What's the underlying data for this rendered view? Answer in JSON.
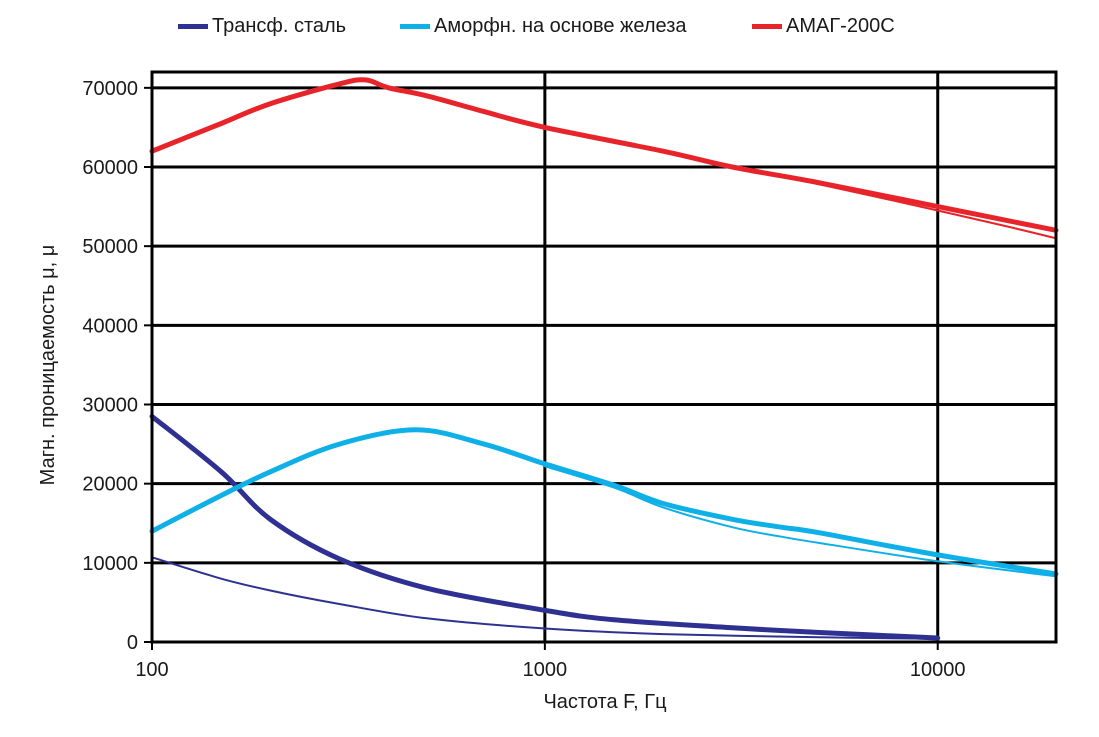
{
  "chart_data": {
    "type": "line",
    "xlabel": "Частота F, Гц",
    "ylabel": "Магн. проницаемость μ, μ",
    "x_scale": "log",
    "xlim": [
      100,
      20000
    ],
    "ylim": [
      0,
      72000
    ],
    "x_ticks": [
      100,
      1000,
      10000
    ],
    "x_tick_labels": [
      "100",
      "1000",
      "10000"
    ],
    "y_ticks": [
      0,
      10000,
      20000,
      30000,
      40000,
      50000,
      60000,
      70000
    ],
    "y_tick_labels": [
      "0",
      "10000",
      "20000",
      "30000",
      "40000",
      "50000",
      "60000",
      "70000"
    ],
    "grid": true,
    "legend_position": "top",
    "series": [
      {
        "name": "Трансф. сталь",
        "color": "#2e3192",
        "curves": [
          {
            "width": "thick",
            "points": [
              [
                100,
                28500
              ],
              [
                150,
                21500
              ],
              [
                200,
                15500
              ],
              [
                300,
                10500
              ],
              [
                500,
                6800
              ],
              [
                1000,
                4000
              ],
              [
                1500,
                2800
              ],
              [
                3000,
                1800
              ],
              [
                5000,
                1200
              ],
              [
                10000,
                500
              ]
            ]
          },
          {
            "width": "thin",
            "points": [
              [
                100,
                10700
              ],
              [
                150,
                8000
              ],
              [
                200,
                6500
              ],
              [
                300,
                4800
              ],
              [
                500,
                3000
              ],
              [
                1000,
                1700
              ],
              [
                2000,
                1000
              ],
              [
                5000,
                600
              ],
              [
                10000,
                400
              ]
            ]
          }
        ]
      },
      {
        "name": "Аморфн. на основе железа",
        "color": "#0fb0e8",
        "curves": [
          {
            "width": "thick",
            "points": [
              [
                100,
                14000
              ],
              [
                150,
                18500
              ],
              [
                200,
                21500
              ],
              [
                300,
                25000
              ],
              [
                470,
                26800
              ],
              [
                700,
                25000
              ],
              [
                1000,
                22500
              ],
              [
                1500,
                19800
              ],
              [
                2000,
                17500
              ],
              [
                3000,
                15500
              ],
              [
                4000,
                14500
              ],
              [
                5000,
                13800
              ],
              [
                10000,
                11000
              ],
              [
                20000,
                8600
              ]
            ]
          },
          {
            "width": "thin",
            "points": [
              [
                1000,
                22200
              ],
              [
                1500,
                19500
              ],
              [
                2000,
                17000
              ],
              [
                3000,
                14500
              ],
              [
                4000,
                13300
              ],
              [
                5000,
                12500
              ],
              [
                10000,
                10200
              ],
              [
                20000,
                8300
              ]
            ]
          }
        ]
      },
      {
        "name": "АМАГ-200С",
        "color": "#e8242b",
        "curves": [
          {
            "width": "thick",
            "points": [
              [
                100,
                62000
              ],
              [
                150,
                65500
              ],
              [
                200,
                68000
              ],
              [
                300,
                70500
              ],
              [
                350,
                71000
              ],
              [
                400,
                70000
              ],
              [
                500,
                69000
              ],
              [
                700,
                67000
              ],
              [
                1000,
                65000
              ],
              [
                2000,
                62000
              ],
              [
                3000,
                60000
              ],
              [
                5000,
                58000
              ],
              [
                10000,
                55000
              ],
              [
                20000,
                52000
              ]
            ]
          },
          {
            "width": "thin",
            "points": [
              [
                3000,
                60000
              ],
              [
                5000,
                57800
              ],
              [
                10000,
                54500
              ],
              [
                15000,
                52500
              ],
              [
                20000,
                51000
              ]
            ]
          }
        ]
      }
    ]
  }
}
